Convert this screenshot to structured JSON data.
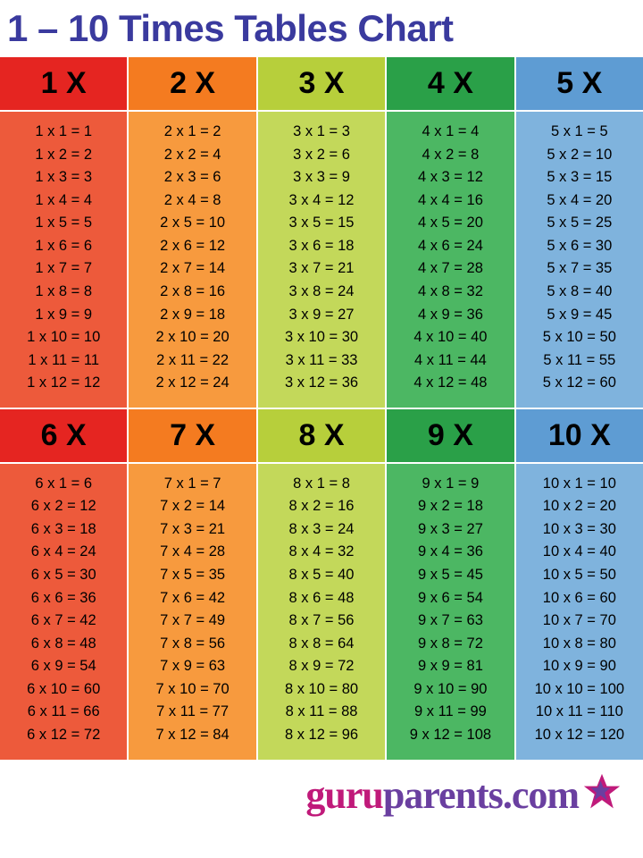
{
  "title": "1 – 10 Times Tables Chart",
  "title_color": "#3a3a9e",
  "title_fontsize": 42,
  "background_color": "#ffffff",
  "grid_border_color": "#ffffff",
  "layout": {
    "rows": 2,
    "cols": 5
  },
  "colors": {
    "headers": [
      "#e52521",
      "#f47b20",
      "#b7cf3b",
      "#2aa048",
      "#5e9cd3",
      "#e52521",
      "#f47b20",
      "#b7cf3b",
      "#2aa048",
      "#5e9cd3"
    ],
    "bodies": [
      "#ed5a3b",
      "#f79a3e",
      "#c3d85a",
      "#4cb763",
      "#7fb3dd",
      "#ed5a3b",
      "#f79a3e",
      "#c3d85a",
      "#4cb763",
      "#7fb3dd"
    ]
  },
  "tables": [
    {
      "n": 1,
      "label": "1 X"
    },
    {
      "n": 2,
      "label": "2 X"
    },
    {
      "n": 3,
      "label": "3 X"
    },
    {
      "n": 4,
      "label": "4 X"
    },
    {
      "n": 5,
      "label": "5 X"
    },
    {
      "n": 6,
      "label": "6 X"
    },
    {
      "n": 7,
      "label": "7 X"
    },
    {
      "n": 8,
      "label": "8 X"
    },
    {
      "n": 9,
      "label": "9 X"
    },
    {
      "n": 10,
      "label": "10 X"
    }
  ],
  "multipliers": [
    1,
    2,
    3,
    4,
    5,
    6,
    7,
    8,
    9,
    10,
    11,
    12
  ],
  "equation_format": "{a} x {b} = {c}",
  "header_fontsize": 34,
  "body_fontsize": 16.5,
  "brand": {
    "part1": "guru",
    "part1_color": "#c01a7a",
    "part2": "parents",
    "part2_color": "#6a3fa0",
    "suffix": ".com",
    "suffix_color": "#6a3fa0",
    "star_color": "#c01a7a",
    "fontsize": 44
  }
}
